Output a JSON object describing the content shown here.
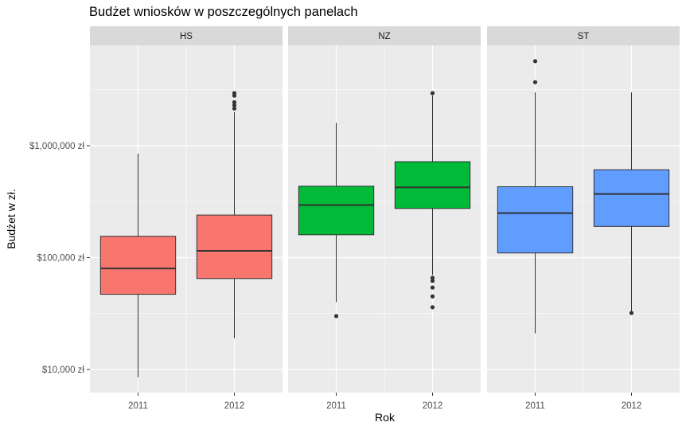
{
  "chart_data": {
    "type": "boxplot",
    "title": "Budżet wniosków w poszczególnych panelach",
    "xlabel": "Rok",
    "ylabel": "Budżet w zł.",
    "y_scale": "log10",
    "y_ticks": [
      {
        "value": 10000,
        "label": "$10,000 zł"
      },
      {
        "value": 100000,
        "label": "$100,000 zł"
      },
      {
        "value": 1000000,
        "label": "$1,000,000 zł"
      }
    ],
    "ylim": [
      6500,
      6000000
    ],
    "categories": [
      "2011",
      "2012"
    ],
    "grid": true,
    "panels": [
      {
        "name": "HS",
        "color": "#F8766D",
        "boxes": [
          {
            "x": "2011",
            "whisker_low": 8500,
            "q1": 47000,
            "median": 80000,
            "q3": 155000,
            "whisker_high": 850000,
            "outliers": []
          },
          {
            "x": "2012",
            "whisker_low": 19000,
            "q1": 65000,
            "median": 115000,
            "q3": 240000,
            "whisker_high": 2000000,
            "outliers": [
              2150000,
              2300000,
              2450000,
              2800000,
              2950000
            ]
          }
        ]
      },
      {
        "name": "NZ",
        "color": "#00BA38",
        "boxes": [
          {
            "x": "2011",
            "whisker_low": 40000,
            "q1": 160000,
            "median": 295000,
            "q3": 435000,
            "whisker_high": 1600000,
            "outliers": [
              30000
            ]
          },
          {
            "x": "2012",
            "whisker_low": 70000,
            "q1": 275000,
            "median": 425000,
            "q3": 720000,
            "whisker_high": 2800000,
            "outliers": [
              36000,
              45000,
              54000,
              62000,
              66000,
              2950000
            ]
          }
        ]
      },
      {
        "name": "ST",
        "color": "#619CFF",
        "boxes": [
          {
            "x": "2011",
            "whisker_low": 21000,
            "q1": 110000,
            "median": 250000,
            "q3": 430000,
            "whisker_high": 3000000,
            "outliers": [
              3700000,
              5700000
            ]
          },
          {
            "x": "2012",
            "whisker_low": 32000,
            "q1": 190000,
            "median": 370000,
            "q3": 610000,
            "whisker_high": 3000000,
            "outliers": [
              32000
            ]
          }
        ]
      }
    ]
  }
}
